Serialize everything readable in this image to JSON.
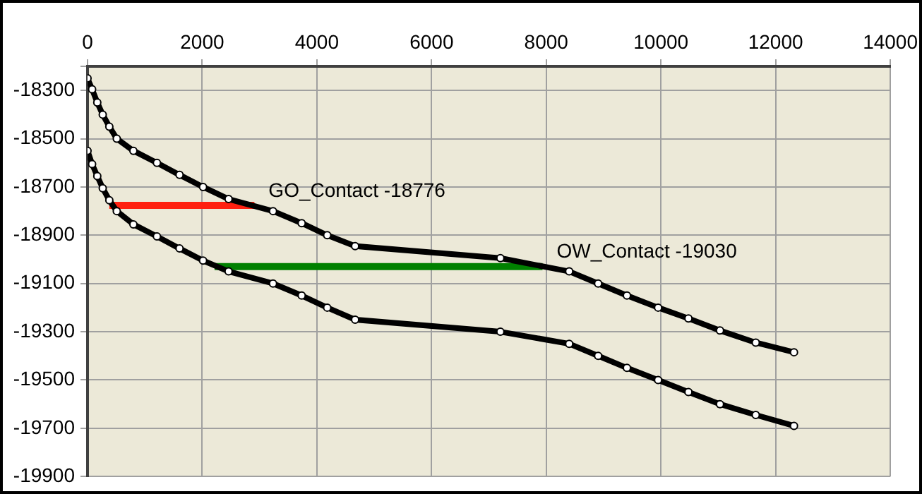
{
  "chart_data": {
    "type": "line",
    "xlim": [
      0,
      14000
    ],
    "xticks": [
      0,
      2000,
      4000,
      6000,
      8000,
      10000,
      12000,
      14000
    ],
    "ylim": [
      -19900,
      -18200
    ],
    "yticks": [
      {
        "value": -18200,
        "label": null
      },
      -18300,
      -18500,
      -18700,
      -18900,
      -19100,
      -19300,
      -19500,
      -19700,
      -19900
    ],
    "grid": true,
    "legend": false,
    "marker": "circle",
    "line_style": "solid",
    "series": [
      {
        "color": "#000000",
        "x": [
          0,
          80,
          170,
          265,
          380,
          510,
          800,
          1210,
          1605,
          2015,
          2460,
          3235,
          3735,
          4180,
          4667,
          7200,
          8400,
          8905,
          9407,
          9951,
          10480,
          11030,
          11654,
          12321
        ],
        "values": [
          -18250,
          -18295,
          -18350,
          -18400,
          -18450,
          -18500,
          -18550,
          -18600,
          -18650,
          -18700,
          -18750,
          -18800,
          -18850,
          -18900,
          -18945,
          -18995,
          -19050,
          -19100,
          -19150,
          -19200,
          -19245,
          -19295,
          -19345,
          -19385
        ]
      },
      {
        "color": "#000000",
        "x": [
          0,
          80,
          170,
          265,
          380,
          510,
          800,
          1210,
          1605,
          2015,
          2460,
          3235,
          3735,
          4180,
          4667,
          7200,
          8400,
          8905,
          9407,
          9951,
          10480,
          11030,
          11654,
          12321
        ],
        "values": [
          -18550,
          -18605,
          -18655,
          -18705,
          -18755,
          -18800,
          -18855,
          -18905,
          -18955,
          -19005,
          -19050,
          -19100,
          -19150,
          -19200,
          -19250,
          -19300,
          -19350,
          -19400,
          -19450,
          -19500,
          -19550,
          -19600,
          -19645,
          -19690
        ]
      },
      {
        "color": "#ff2010",
        "marker": "none",
        "x": [
          380,
          2910
        ],
        "values": [
          -18776,
          -18776
        ]
      },
      {
        "color": "#008000",
        "marker": "none",
        "x": [
          2215,
          7935
        ],
        "values": [
          -19030,
          -19030
        ]
      }
    ],
    "annotations": [
      {
        "text": "GO_Contact -18776",
        "x": 2910,
        "y": -18776
      },
      {
        "text": "OW_Contact -19030",
        "x": 7935,
        "y": -19030
      }
    ]
  }
}
